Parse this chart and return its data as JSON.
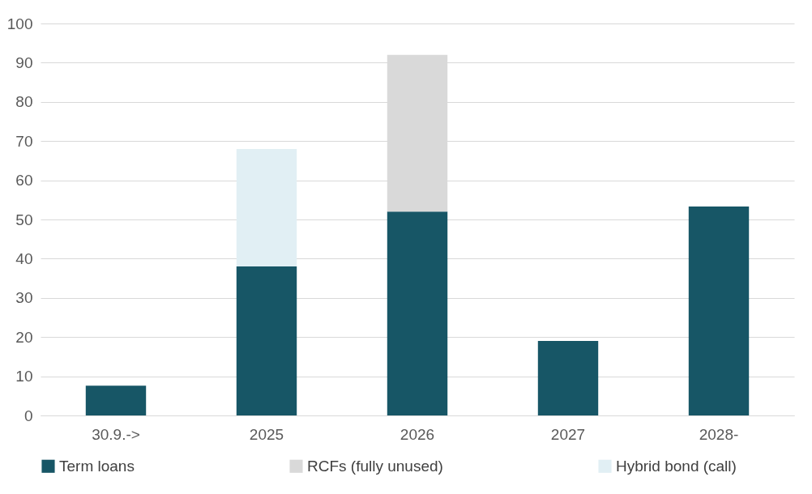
{
  "chart_data": {
    "type": "bar",
    "stacked": true,
    "categories": [
      "30.9.->",
      "2025",
      "2026",
      "2027",
      "2028-"
    ],
    "series": [
      {
        "name": "Term loans",
        "color": "#175666",
        "values": [
          7.6,
          38,
          52,
          19,
          53.3
        ]
      },
      {
        "name": "RCFs (fully unused)",
        "color": "#d9d9d9",
        "values": [
          null,
          null,
          40,
          null,
          null
        ]
      },
      {
        "name": "Hybrid bond (call)",
        "color": "#e1eff4",
        "values": [
          null,
          30,
          null,
          null,
          null
        ]
      }
    ],
    "ylim": [
      0,
      100
    ],
    "yticks": [
      0,
      10,
      20,
      30,
      40,
      50,
      60,
      70,
      80,
      90,
      100
    ],
    "grid": "y",
    "legend": "bottom"
  }
}
